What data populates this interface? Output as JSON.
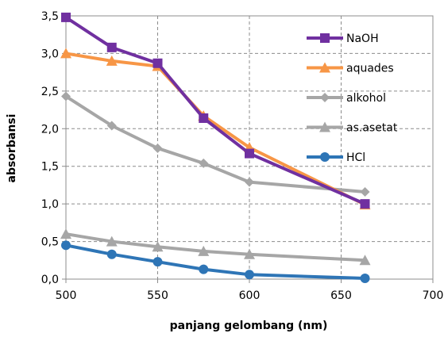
{
  "chart_data": {
    "type": "line",
    "title": "",
    "xlabel": "panjang gelombang (nm)",
    "ylabel": "absorbansi",
    "xlim": [
      500,
      700
    ],
    "ylim": [
      0,
      3.5
    ],
    "x_ticks": [
      "500",
      "550",
      "600",
      "650",
      "700"
    ],
    "y_ticks": [
      "0,0",
      "0,5",
      "1,0",
      "1,5",
      "2,0",
      "2,5",
      "3,0",
      "3,5"
    ],
    "grid": "dashed",
    "legend_position": "top-right",
    "series": [
      {
        "name": "NaOH",
        "color": "#7030a0",
        "marker": "square",
        "x": [
          500,
          525,
          550,
          575,
          600,
          663
        ],
        "y": [
          3.48,
          3.08,
          2.87,
          2.14,
          1.67,
          1.0
        ]
      },
      {
        "name": "aquades",
        "color": "#f79646",
        "marker": "triangle",
        "x": [
          500,
          525,
          550,
          575,
          600,
          663
        ],
        "y": [
          3.0,
          2.9,
          2.83,
          2.17,
          1.75,
          0.99
        ]
      },
      {
        "name": "alkohol",
        "color": "#a6a6a6",
        "marker": "diamond",
        "x": [
          500,
          525,
          550,
          575,
          600,
          663
        ],
        "y": [
          2.43,
          2.04,
          1.74,
          1.54,
          1.29,
          1.16
        ]
      },
      {
        "name": "as.asetat",
        "color": "#a6a6a6",
        "marker": "triangle",
        "x": [
          500,
          525,
          550,
          575,
          600,
          663
        ],
        "y": [
          0.6,
          0.5,
          0.43,
          0.37,
          0.33,
          0.25
        ]
      },
      {
        "name": "HCl",
        "color": "#2e75b6",
        "marker": "circle",
        "x": [
          500,
          525,
          550,
          575,
          600,
          663
        ],
        "y": [
          0.45,
          0.33,
          0.23,
          0.13,
          0.06,
          0.01
        ]
      }
    ]
  }
}
